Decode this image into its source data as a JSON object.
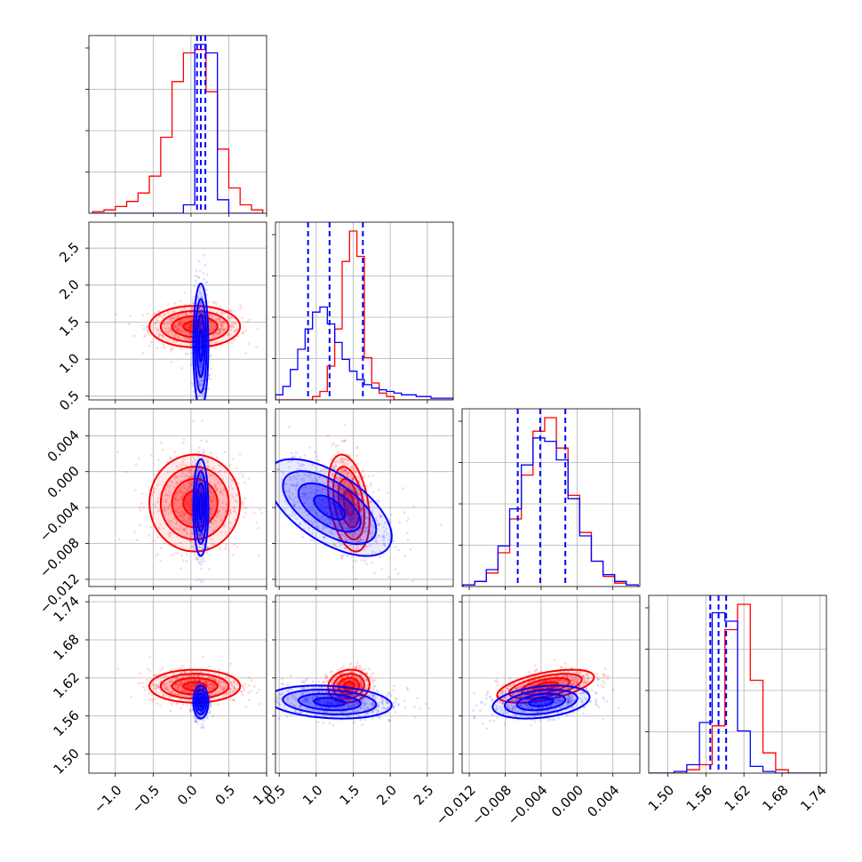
{
  "chart_data": {
    "type": "corner",
    "grid": true,
    "colors": {
      "series_a": "#ff0000",
      "series_b": "#0000ff",
      "grid": "#b0b0b0",
      "axes": "#000000"
    },
    "series": [
      {
        "color": "#ff0000",
        "style": "step histograms, scatter points, filled density contours"
      },
      {
        "color": "#0000ff",
        "style": "step histograms, scatter points, filled density contours"
      }
    ],
    "parameters": [
      {
        "ticks": [
          -1.0,
          -0.5,
          0.0,
          0.5,
          1.0
        ],
        "tick_labels": [
          "−1.0",
          "−0.5",
          "0.0",
          "0.5",
          "1.0"
        ],
        "range": [
          -1.35,
          1.0
        ],
        "hist_bins": [
          -1.3,
          -1.15,
          -1.0,
          -0.85,
          -0.7,
          -0.55,
          -0.4,
          -0.25,
          -0.1,
          0.05,
          0.2,
          0.35,
          0.5,
          0.65,
          0.8,
          0.95
        ],
        "hist_red": [
          0.01,
          0.02,
          0.04,
          0.07,
          0.12,
          0.22,
          0.45,
          0.78,
          0.95,
          0.97,
          0.72,
          0.38,
          0.15,
          0.05,
          0.02
        ],
        "hist_blue": [
          0,
          0,
          0,
          0,
          0,
          0,
          0,
          0,
          0.05,
          1.0,
          0.95,
          0.08,
          0,
          0,
          0
        ],
        "quantiles_blue": [
          0.08,
          0.13,
          0.19
        ]
      },
      {
        "ticks": [
          0.5,
          1.0,
          1.5,
          2.0,
          2.5
        ],
        "tick_labels": [
          "0.5",
          "1.0",
          "1.5",
          "2.0",
          "2.5"
        ],
        "range": [
          0.45,
          2.85
        ],
        "hist_bins": [
          0.45,
          0.55,
          0.65,
          0.75,
          0.85,
          0.95,
          1.05,
          1.15,
          1.25,
          1.35,
          1.45,
          1.55,
          1.65,
          1.75,
          1.85,
          1.95,
          2.05,
          2.15,
          2.25,
          2.35,
          2.45,
          2.55,
          2.65,
          2.75,
          2.85
        ],
        "hist_red": [
          0,
          0,
          0,
          0,
          0,
          0.02,
          0.05,
          0.2,
          0.42,
          0.82,
          1.0,
          0.85,
          0.25,
          0.1,
          0.04,
          0.02,
          0,
          0,
          0,
          0,
          0,
          0,
          0,
          0
        ],
        "hist_blue": [
          0.03,
          0.08,
          0.18,
          0.3,
          0.42,
          0.52,
          0.55,
          0.45,
          0.34,
          0.24,
          0.17,
          0.12,
          0.09,
          0.07,
          0.06,
          0.05,
          0.04,
          0.03,
          0.03,
          0.02,
          0.02,
          0.01,
          0.01,
          0.01
        ],
        "quantiles_blue": [
          0.89,
          1.18,
          1.63
        ]
      },
      {
        "ticks": [
          -0.012,
          -0.008,
          -0.004,
          0.0,
          0.004
        ],
        "tick_labels": [
          "−0.012",
          "−0.008",
          "−0.004",
          "0.000",
          "0.004"
        ],
        "range": [
          -0.0128,
          0.007
        ],
        "hist_bins": [
          -0.0127,
          -0.0114,
          -0.0101,
          -0.0088,
          -0.0075,
          -0.0062,
          -0.0049,
          -0.0036,
          -0.0023,
          -0.001,
          0.0003,
          0.0016,
          0.0029,
          0.0042,
          0.0055,
          0.0068
        ],
        "hist_red": [
          0.01,
          0.03,
          0.08,
          0.2,
          0.4,
          0.66,
          0.92,
          1.0,
          0.82,
          0.54,
          0.32,
          0.15,
          0.06,
          0.02,
          0.01
        ],
        "hist_blue": [
          0.01,
          0.03,
          0.1,
          0.24,
          0.46,
          0.72,
          0.88,
          0.86,
          0.75,
          0.52,
          0.3,
          0.15,
          0.07,
          0.03,
          0.01
        ],
        "quantiles_blue": [
          -0.0066,
          -0.0041,
          -0.0013
        ]
      },
      {
        "ticks": [
          1.5,
          1.56,
          1.62,
          1.68,
          1.74
        ],
        "tick_labels": [
          "1.50",
          "1.56",
          "1.62",
          "1.68",
          "1.74"
        ],
        "range": [
          1.47,
          1.75
        ],
        "hist_bins": [
          1.47,
          1.49,
          1.51,
          1.53,
          1.55,
          1.57,
          1.59,
          1.61,
          1.63,
          1.65,
          1.67,
          1.69,
          1.71,
          1.73,
          1.75
        ],
        "hist_red": [
          0,
          0,
          0,
          0.02,
          0.05,
          0.28,
          0.85,
          1.0,
          0.55,
          0.12,
          0.02,
          0,
          0,
          0
        ],
        "hist_blue": [
          0,
          0,
          0.01,
          0.05,
          0.3,
          0.95,
          0.9,
          0.25,
          0.04,
          0.01,
          0,
          0,
          0,
          0
        ],
        "quantiles_blue": [
          1.567,
          1.58,
          1.592
        ]
      }
    ],
    "pairs": [
      {
        "x": 0,
        "y": 1,
        "red": {
          "mean": [
            0.05,
            1.44
          ],
          "sd": [
            0.3,
            0.14
          ],
          "corr": 0.0
        },
        "blue": {
          "mean": [
            0.13,
            1.18
          ],
          "sd": [
            0.05,
            0.42
          ],
          "corr": 0.0
        }
      },
      {
        "x": 0,
        "y": 2,
        "red": {
          "mean": [
            0.05,
            -0.0035
          ],
          "sd": [
            0.3,
            0.0027
          ],
          "corr": 0.0
        },
        "blue": {
          "mean": [
            0.13,
            -0.004
          ],
          "sd": [
            0.05,
            0.0027
          ],
          "corr": 0.0
        }
      },
      {
        "x": 1,
        "y": 2,
        "red": {
          "mean": [
            1.44,
            -0.0035
          ],
          "sd": [
            0.14,
            0.0027
          ],
          "corr": -0.35
        },
        "blue": {
          "mean": [
            1.18,
            -0.004
          ],
          "sd": [
            0.42,
            0.0027
          ],
          "corr": -0.6
        }
      },
      {
        "x": 0,
        "y": 3,
        "red": {
          "mean": [
            0.05,
            1.607
          ],
          "sd": [
            0.3,
            0.013
          ],
          "corr": 0.0
        },
        "blue": {
          "mean": [
            0.13,
            1.582
          ],
          "sd": [
            0.05,
            0.013
          ],
          "corr": 0.0
        }
      },
      {
        "x": 1,
        "y": 3,
        "red": {
          "mean": [
            1.44,
            1.607
          ],
          "sd": [
            0.14,
            0.013
          ],
          "corr": 0.1
        },
        "blue": {
          "mean": [
            1.18,
            1.582
          ],
          "sd": [
            0.42,
            0.013
          ],
          "corr": -0.2
        }
      },
      {
        "x": 2,
        "y": 3,
        "red": {
          "mean": [
            -0.0035,
            1.607
          ],
          "sd": [
            0.0027,
            0.013
          ],
          "corr": 0.55
        },
        "blue": {
          "mean": [
            -0.004,
            1.582
          ],
          "sd": [
            0.0027,
            0.013
          ],
          "corr": 0.3
        }
      }
    ],
    "contour_sigma_levels": [
      0.5,
      1.0,
      1.5,
      2.0
    ]
  }
}
